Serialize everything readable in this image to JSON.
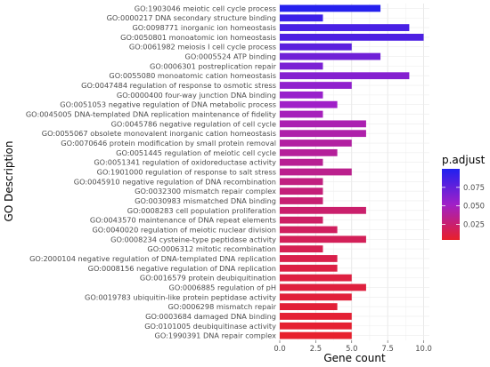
{
  "chart_data": {
    "type": "bar",
    "orientation": "horizontal",
    "categories": [
      "GO:1903046  meiotic cell cycle process",
      "GO:0000217  DNA secondary structure binding",
      "GO:0098771  inorganic ion homeostasis",
      "GO:0050801  monoatomic ion homeostasis",
      "GO:0061982  meiosis I cell cycle process",
      "GO:0005524  ATP binding",
      "GO:0006301  postreplication repair",
      "GO:0055080  monoatomic cation homeostasis",
      "GO:0047484  regulation of response to osmotic stress",
      "GO:0000400  four-way junction DNA binding",
      "GO:0051053  negative regulation of DNA metabolic process",
      "GO:0045005  DNA-templated DNA replication maintenance of fidelity",
      "GO:0045786  negative regulation of cell cycle",
      "GO:0055067  obsolete monovalent inorganic cation homeostasis",
      "GO:0070646  protein modification by small protein removal",
      "GO:0051445  regulation of meiotic cell cycle",
      "GO:0051341  regulation of oxidoreductase activity",
      "GO:1901000  regulation of response to salt stress",
      "GO:0045910  negative regulation of DNA recombination",
      "GO:0032300  mismatch repair complex",
      "GO:0030983  mismatched DNA binding",
      "GO:0008283  cell population proliferation",
      "GO:0043570  maintenance of DNA repeat elements",
      "GO:0040020  regulation of meiotic nuclear division",
      "GO:0008234  cysteine-type peptidase activity",
      "GO:0006312  mitotic recombination",
      "GO:2000104  negative regulation of DNA-templated DNA replication",
      "GO:0008156  negative regulation of DNA replication",
      "GO:0016579  protein deubiquitination",
      "GO:0006885  regulation of pH",
      "GO:0019783  ubiquitin-like protein peptidase activity",
      "GO:0006298  mismatch repair",
      "GO:0003684  damaged DNA binding",
      "GO:0101005  deubiquitinase activity",
      "GO:1990391  DNA repair complex"
    ],
    "values": [
      7,
      3,
      9,
      10,
      5,
      7,
      3,
      9,
      5,
      3,
      4,
      3,
      6,
      6,
      5,
      4,
      3,
      5,
      3,
      3,
      3,
      6,
      3,
      4,
      6,
      3,
      4,
      4,
      5,
      6,
      5,
      4,
      5,
      5,
      5
    ],
    "p_adjust": [
      0.098,
      0.09,
      0.085,
      0.083,
      0.078,
      0.07,
      0.066,
      0.062,
      0.058,
      0.055,
      0.052,
      0.048,
      0.045,
      0.043,
      0.04,
      0.038,
      0.036,
      0.034,
      0.03,
      0.028,
      0.026,
      0.024,
      0.022,
      0.02,
      0.018,
      0.016,
      0.014,
      0.012,
      0.011,
      0.01,
      0.009,
      0.008,
      0.007,
      0.006,
      0.005
    ],
    "xlabel": "Gene count",
    "ylabel": "GO Description",
    "xlim": [
      0,
      10.4
    ],
    "xticks": [
      "0.0",
      "2.5",
      "5.0",
      "7.5",
      "10.0"
    ],
    "xtick_values": [
      0,
      2.5,
      5,
      7.5,
      10
    ],
    "grid": true,
    "legend": {
      "title": "p.adjust",
      "placement": "right",
      "ticks": [
        "0.075",
        "0.050",
        "0.025"
      ],
      "tick_values": [
        0.075,
        0.05,
        0.025
      ],
      "range": [
        0.004,
        0.1
      ],
      "color_low": "#e8202a",
      "color_mid": "#a020c8",
      "color_high": "#2020f0"
    }
  }
}
